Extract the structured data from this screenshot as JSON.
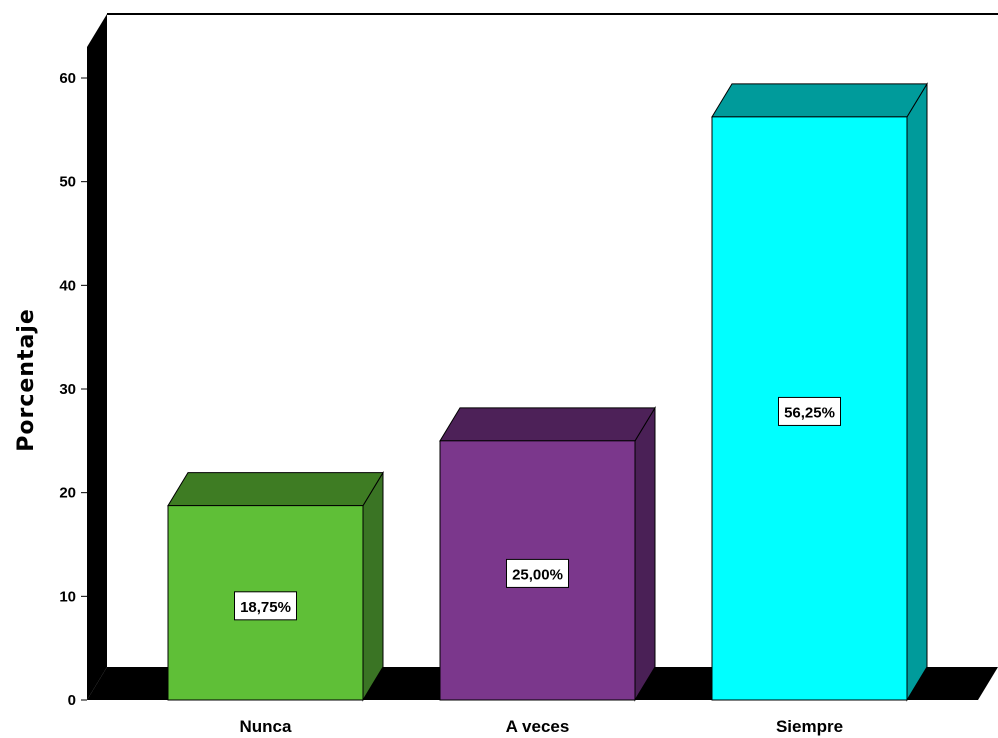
{
  "chart_data": {
    "type": "bar",
    "title": "",
    "xlabel": "",
    "ylabel": "Porcentaje",
    "ylim": [
      0,
      60
    ],
    "yticks": [
      0,
      10,
      20,
      30,
      40,
      50,
      60
    ],
    "categories": [
      "Nunca",
      "A veces",
      "Siempre"
    ],
    "values": [
      18.75,
      25.0,
      56.25
    ],
    "data_labels": [
      "18,75%",
      "25,00%",
      "56,25%"
    ],
    "colors": [
      {
        "front": "#5FBF37",
        "top": "#3E7C23",
        "side": "#3A7424"
      },
      {
        "front": "#7B378C",
        "top": "#4D2158",
        "side": "#4A2056"
      },
      {
        "front": "#00FFFF",
        "top": "#009B9B",
        "side": "#009B9B"
      }
    ],
    "wall_color": "#000000",
    "grid": false,
    "three_d": true
  }
}
